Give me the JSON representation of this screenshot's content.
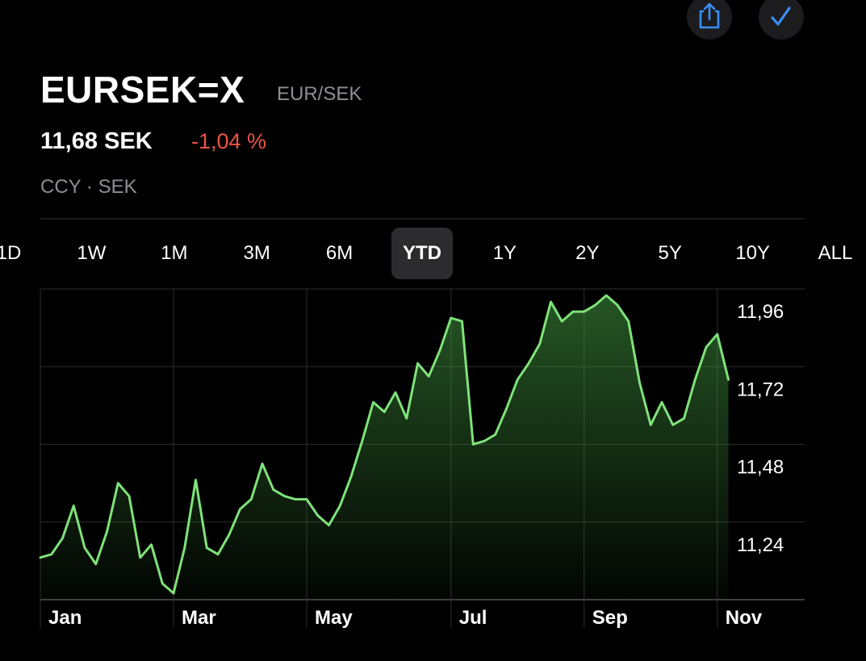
{
  "header": {
    "title": "EURSEK=X",
    "subtitle": "EUR/SEK",
    "price": "11,68 SEK",
    "change": "-1,04 %",
    "exchange": "CCY · SEK"
  },
  "ranges": {
    "options": [
      "1D",
      "1W",
      "1M",
      "3M",
      "6M",
      "YTD",
      "1Y",
      "2Y",
      "5Y",
      "10Y",
      "ALL"
    ],
    "selected": 5
  },
  "chart_data": {
    "type": "area",
    "color": "#7fe27a",
    "categories": [
      "Jan",
      null,
      null,
      null,
      null,
      null,
      null,
      null,
      null,
      null,
      null,
      null,
      "Mar",
      null,
      null,
      null,
      null,
      null,
      null,
      null,
      null,
      null,
      null,
      null,
      "May",
      null,
      null,
      null,
      null,
      null,
      null,
      null,
      null,
      null,
      null,
      null,
      null,
      "Jul",
      null,
      null,
      null,
      null,
      null,
      null,
      null,
      null,
      null,
      null,
      null,
      "Sep",
      null,
      null,
      null,
      null,
      null,
      null,
      null,
      null,
      null,
      null,
      null,
      "Nov",
      null
    ],
    "values": [
      11.13,
      11.14,
      11.19,
      11.29,
      11.16,
      11.11,
      11.21,
      11.36,
      11.32,
      11.13,
      11.17,
      11.05,
      11.02,
      11.16,
      11.37,
      11.16,
      11.14,
      11.2,
      11.28,
      11.31,
      11.42,
      11.34,
      11.32,
      11.31,
      11.31,
      11.26,
      11.23,
      11.29,
      11.38,
      11.49,
      11.61,
      11.58,
      11.64,
      11.56,
      11.73,
      11.69,
      11.77,
      11.87,
      11.86,
      11.48,
      11.49,
      11.51,
      11.59,
      11.68,
      11.73,
      11.79,
      11.92,
      11.86,
      11.89,
      11.89,
      11.91,
      11.94,
      11.91,
      11.86,
      11.67,
      11.54,
      11.61,
      11.54,
      11.56,
      11.68,
      11.78,
      11.82,
      11.68
    ],
    "ylim": [
      11.0,
      11.96
    ],
    "yticks": [
      {
        "value": 11.96,
        "label": "11,96"
      },
      {
        "value": 11.72,
        "label": "11,72"
      },
      {
        "value": 11.48,
        "label": "11,48"
      },
      {
        "value": 11.24,
        "label": "11,24"
      }
    ],
    "grid": true
  }
}
